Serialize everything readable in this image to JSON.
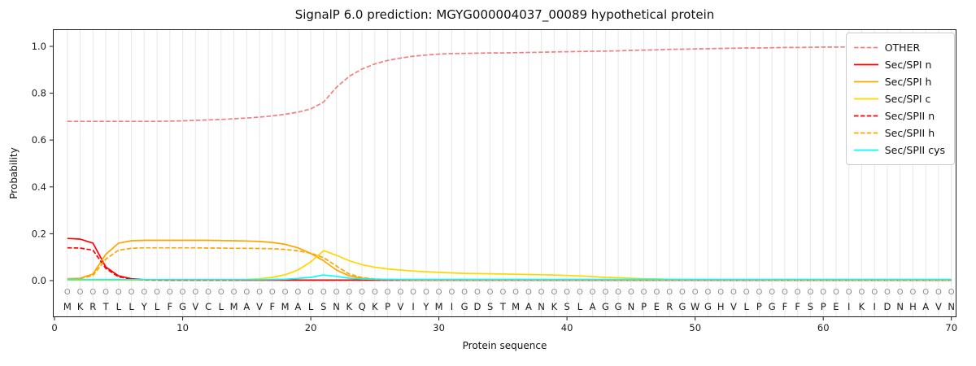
{
  "chart_data": {
    "type": "line",
    "title": "SignalP 6.0 prediction: MGYG000004037_00089 hypothetical protein",
    "xlabel": "Protein sequence",
    "ylabel": "Probability",
    "x_ticks": [
      0,
      10,
      20,
      30,
      40,
      50,
      60,
      70
    ],
    "y_ticks": [
      0.0,
      0.2,
      0.4,
      0.6,
      0.8,
      1.0
    ],
    "ylim": [
      0,
      1
    ],
    "grid": "vertical-per-residue",
    "legend_position": "upper-right",
    "sequence": "MKRTLLYLFGVCLMAVFMALSNKQKPVIYMIGDSTMANKSLAGGNPERGWGHVLPGFFSPEIKIDNHAVN",
    "position_labels": "OOOOOOOOOOOOOOOOOOOOOOOOOOOOOOOOOOOOOOOOOOOOOOOOOOOOOOOOOOOOOOOOOOOOOO",
    "series": [
      {
        "name": "OTHER",
        "color": "#f08080",
        "dashed": true,
        "values": [
          0.68,
          0.68,
          0.68,
          0.68,
          0.68,
          0.68,
          0.68,
          0.68,
          0.681,
          0.682,
          0.684,
          0.686,
          0.688,
          0.691,
          0.694,
          0.698,
          0.703,
          0.71,
          0.719,
          0.733,
          0.762,
          0.825,
          0.872,
          0.903,
          0.925,
          0.94,
          0.95,
          0.958,
          0.963,
          0.967,
          0.969,
          0.97,
          0.971,
          0.972,
          0.972,
          0.973,
          0.974,
          0.975,
          0.976,
          0.977,
          0.978,
          0.979,
          0.98,
          0.981,
          0.983,
          0.984,
          0.985,
          0.987,
          0.988,
          0.989,
          0.99,
          0.991,
          0.992,
          0.993,
          0.993,
          0.994,
          0.995,
          0.995,
          0.996,
          0.997,
          0.997,
          0.998,
          0.998,
          0.998,
          0.999,
          0.999,
          0.999,
          1.0,
          1.0,
          1.0
        ]
      },
      {
        "name": "Sec/SPI n",
        "color": "#ff0000",
        "dashed": false,
        "values": [
          0.18,
          0.177,
          0.16,
          0.058,
          0.02,
          0.008,
          0.004,
          0.003,
          0.002,
          0.002,
          0.002,
          0.002,
          0.002,
          0.002,
          0.002,
          0.002,
          0.002,
          0.002,
          0.002,
          0.002,
          0.002,
          0.002,
          0.002,
          0.002,
          0.002,
          0.002,
          0.002,
          0.002,
          0.002,
          0.002,
          0.002,
          0.002,
          0.002,
          0.002,
          0.002,
          0.002,
          0.002,
          0.002,
          0.002,
          0.002,
          0.002,
          0.002,
          0.002,
          0.002,
          0.002,
          0.002,
          0.002,
          0.002,
          0.002,
          0.002,
          0.002,
          0.002,
          0.002,
          0.002,
          0.002,
          0.002,
          0.002,
          0.002,
          0.002,
          0.002,
          0.002,
          0.002,
          0.002,
          0.002,
          0.002,
          0.002,
          0.002,
          0.002,
          0.002,
          0.002
        ]
      },
      {
        "name": "Sec/SPI h",
        "color": "#ffa500",
        "dashed": false,
        "values": [
          0.008,
          0.01,
          0.028,
          0.112,
          0.16,
          0.17,
          0.172,
          0.172,
          0.172,
          0.172,
          0.172,
          0.172,
          0.171,
          0.17,
          0.169,
          0.167,
          0.163,
          0.155,
          0.14,
          0.116,
          0.085,
          0.045,
          0.02,
          0.01,
          0.006,
          0.004,
          0.003,
          0.003,
          0.003,
          0.003,
          0.003,
          0.003,
          0.003,
          0.003,
          0.003,
          0.003,
          0.003,
          0.003,
          0.003,
          0.003,
          0.003,
          0.003,
          0.003,
          0.003,
          0.003,
          0.003,
          0.003,
          0.003,
          0.003,
          0.003,
          0.003,
          0.003,
          0.003,
          0.003,
          0.003,
          0.003,
          0.003,
          0.003,
          0.003,
          0.003,
          0.003,
          0.003,
          0.003,
          0.003,
          0.003,
          0.003,
          0.003,
          0.003,
          0.003,
          0.003
        ]
      },
      {
        "name": "Sec/SPI c",
        "color": "#ffd700",
        "dashed": false,
        "values": [
          0.002,
          0.002,
          0.002,
          0.002,
          0.002,
          0.002,
          0.002,
          0.002,
          0.002,
          0.002,
          0.002,
          0.002,
          0.002,
          0.003,
          0.005,
          0.008,
          0.014,
          0.025,
          0.045,
          0.08,
          0.128,
          0.108,
          0.085,
          0.068,
          0.057,
          0.05,
          0.045,
          0.041,
          0.038,
          0.035,
          0.033,
          0.031,
          0.03,
          0.029,
          0.028,
          0.027,
          0.026,
          0.025,
          0.024,
          0.022,
          0.02,
          0.017,
          0.014,
          0.012,
          0.01,
          0.008,
          0.007,
          0.006,
          0.005,
          0.004,
          0.004,
          0.003,
          0.003,
          0.003,
          0.003,
          0.002,
          0.002,
          0.002,
          0.002,
          0.002,
          0.002,
          0.002,
          0.002,
          0.002,
          0.002,
          0.002,
          0.002,
          0.002,
          0.002,
          0.002
        ]
      },
      {
        "name": "Sec/SPII n",
        "color": "#ff0000",
        "dashed": true,
        "values": [
          0.14,
          0.139,
          0.13,
          0.052,
          0.016,
          0.006,
          0.003,
          0.002,
          0.002,
          0.002,
          0.002,
          0.002,
          0.002,
          0.002,
          0.002,
          0.002,
          0.002,
          0.002,
          0.002,
          0.002,
          0.002,
          0.002,
          0.002,
          0.002,
          0.002,
          0.002,
          0.002,
          0.002,
          0.002,
          0.002,
          0.002,
          0.002,
          0.002,
          0.002,
          0.002,
          0.002,
          0.002,
          0.002,
          0.002,
          0.002,
          0.002,
          0.002,
          0.002,
          0.002,
          0.002,
          0.002,
          0.002,
          0.002,
          0.002,
          0.002,
          0.002,
          0.002,
          0.002,
          0.002,
          0.002,
          0.002,
          0.002,
          0.002,
          0.002,
          0.002,
          0.002,
          0.002,
          0.002,
          0.002,
          0.002,
          0.002,
          0.002,
          0.002,
          0.002,
          0.002
        ]
      },
      {
        "name": "Sec/SPII h",
        "color": "#ffa500",
        "dashed": true,
        "values": [
          0.006,
          0.008,
          0.022,
          0.092,
          0.13,
          0.138,
          0.14,
          0.14,
          0.14,
          0.14,
          0.14,
          0.139,
          0.139,
          0.138,
          0.138,
          0.137,
          0.136,
          0.133,
          0.127,
          0.117,
          0.098,
          0.062,
          0.028,
          0.013,
          0.007,
          0.005,
          0.004,
          0.003,
          0.003,
          0.003,
          0.003,
          0.003,
          0.003,
          0.003,
          0.003,
          0.003,
          0.003,
          0.003,
          0.003,
          0.003,
          0.003,
          0.003,
          0.003,
          0.003,
          0.003,
          0.003,
          0.003,
          0.003,
          0.003,
          0.003,
          0.003,
          0.003,
          0.003,
          0.003,
          0.003,
          0.003,
          0.003,
          0.003,
          0.003,
          0.003,
          0.003,
          0.003,
          0.003,
          0.003,
          0.003,
          0.003,
          0.003,
          0.003,
          0.003,
          0.003
        ]
      },
      {
        "name": "Sec/SPII cys",
        "color": "#00ffff",
        "dashed": false,
        "values": [
          0.004,
          0.004,
          0.004,
          0.004,
          0.004,
          0.004,
          0.004,
          0.004,
          0.004,
          0.004,
          0.004,
          0.004,
          0.004,
          0.004,
          0.004,
          0.004,
          0.005,
          0.006,
          0.009,
          0.014,
          0.024,
          0.018,
          0.01,
          0.007,
          0.006,
          0.005,
          0.005,
          0.005,
          0.005,
          0.005,
          0.005,
          0.005,
          0.005,
          0.005,
          0.005,
          0.005,
          0.005,
          0.005,
          0.005,
          0.005,
          0.005,
          0.005,
          0.005,
          0.005,
          0.005,
          0.005,
          0.005,
          0.005,
          0.005,
          0.005,
          0.005,
          0.005,
          0.005,
          0.005,
          0.005,
          0.005,
          0.005,
          0.005,
          0.005,
          0.005,
          0.005,
          0.005,
          0.005,
          0.005,
          0.005,
          0.005,
          0.005,
          0.005,
          0.005,
          0.005
        ]
      }
    ]
  }
}
